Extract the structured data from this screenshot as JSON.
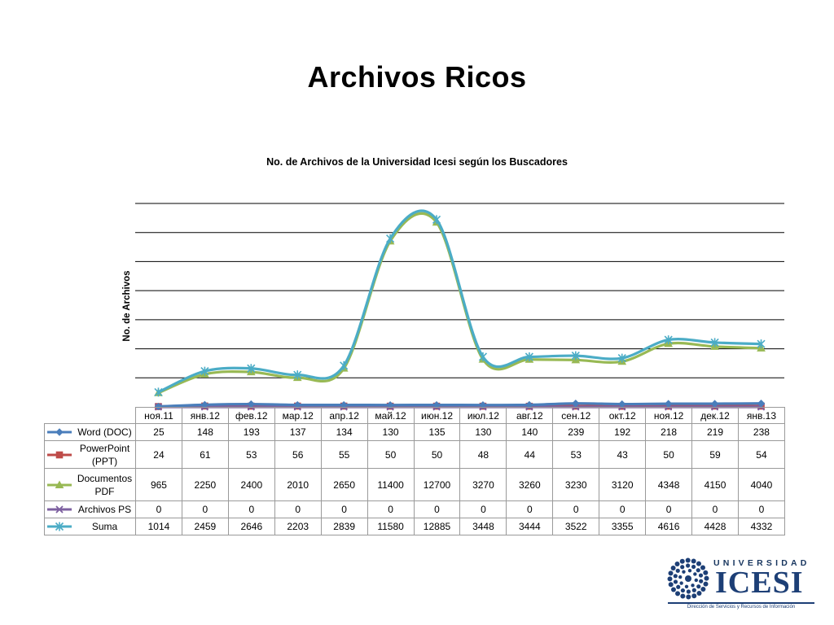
{
  "slide": {
    "title": "Archivos Ricos"
  },
  "chart_data": {
    "type": "line",
    "title": "No. de Archivos de la Universidad Icesi según los Buscadores",
    "xlabel": "",
    "ylabel": "No. de Archivos",
    "categories": [
      "ноя.11",
      "янв.12",
      "фев.12",
      "мар.12",
      "апр.12",
      "май.12",
      "июн.12",
      "июл.12",
      "авг.12",
      "сен.12",
      "окт.12",
      "ноя.12",
      "дек.12",
      "янв.13"
    ],
    "ylim": [
      0,
      14000
    ],
    "y_gridline_step": 2000,
    "grid": true,
    "legend": "data-table",
    "smooth": true,
    "series": [
      {
        "name": "Word (DOC)",
        "color": "#4a7ebb",
        "marker": "diamond",
        "values": [
          25,
          148,
          193,
          137,
          134,
          130,
          135,
          130,
          140,
          239,
          192,
          218,
          219,
          238
        ]
      },
      {
        "name": "PowerPoint (PPT)",
        "color": "#be4b48",
        "marker": "square",
        "values": [
          24,
          61,
          53,
          56,
          55,
          50,
          50,
          48,
          44,
          53,
          43,
          50,
          59,
          54
        ]
      },
      {
        "name": "Documentos PDF",
        "color": "#98b954",
        "marker": "triangle",
        "values": [
          965,
          2250,
          2400,
          2010,
          2650,
          11400,
          12700,
          3270,
          3260,
          3230,
          3120,
          4348,
          4150,
          4040
        ]
      },
      {
        "name": "Archivos PS",
        "color": "#7d60a0",
        "marker": "x",
        "values": [
          0,
          0,
          0,
          0,
          0,
          0,
          0,
          0,
          0,
          0,
          0,
          0,
          0,
          0
        ]
      },
      {
        "name": "Suma",
        "color": "#4bacc6",
        "marker": "star",
        "values": [
          1014,
          2459,
          2646,
          2203,
          2839,
          11580,
          12885,
          3448,
          3444,
          3522,
          3355,
          4616,
          4428,
          4332
        ]
      }
    ]
  },
  "logo": {
    "line1": "UNIVERSIDAD",
    "line2": "ICESI",
    "caption": "Dirección de Servicios y Recursos de Información",
    "color": "#1d3f76"
  }
}
